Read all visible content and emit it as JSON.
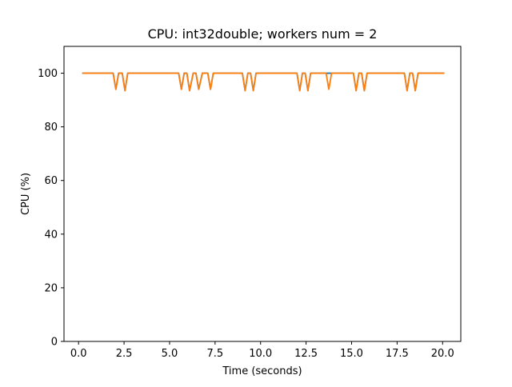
{
  "chart_data": {
    "type": "line",
    "title": "CPU: int32double; workers num = 2",
    "xlabel": "Time (seconds)",
    "ylabel": "CPU (%)",
    "xlim": [
      -0.8,
      21.0
    ],
    "ylim": [
      0,
      110
    ],
    "x_ticks": [
      0.0,
      2.5,
      5.0,
      7.5,
      10.0,
      12.5,
      15.0,
      17.5,
      20.0
    ],
    "x_tick_labels": [
      "0.0",
      "2.5",
      "5.0",
      "7.5",
      "10.0",
      "12.5",
      "15.0",
      "17.5",
      "20.0"
    ],
    "y_ticks": [
      0,
      20,
      40,
      60,
      80,
      100
    ],
    "y_tick_labels": [
      "0",
      "20",
      "40",
      "60",
      "80",
      "100"
    ],
    "grid": false,
    "legend": "none",
    "series": [
      {
        "color": "#1f77b4",
        "x": [
          0.2,
          1.9,
          2.05,
          2.2,
          2.3,
          2.4,
          2.55,
          2.7,
          5.5,
          5.65,
          5.8,
          5.95,
          6.1,
          6.3,
          6.45,
          6.6,
          6.8,
          6.95,
          7.1,
          7.25,
          7.4,
          9.0,
          9.15,
          9.3,
          9.45,
          9.6,
          9.75,
          9.9,
          12.0,
          12.15,
          12.3,
          12.45,
          12.6,
          12.75,
          12.9,
          13.6,
          13.75,
          13.9,
          15.1,
          15.25,
          15.4,
          15.55,
          15.7,
          15.85,
          16.0,
          17.9,
          18.05,
          18.2,
          18.35,
          18.5,
          18.65,
          18.8,
          20.1
        ],
        "y": [
          100,
          100,
          94,
          100,
          100,
          100,
          93.5,
          100,
          100,
          94,
          100,
          100,
          93.5,
          100,
          100,
          94,
          100,
          100,
          100,
          94,
          100,
          100,
          93.5,
          100,
          100,
          93.5,
          100,
          100,
          100,
          93.5,
          100,
          100,
          93.5,
          100,
          100,
          100,
          100,
          100,
          100,
          93.5,
          100,
          100,
          93.5,
          100,
          100,
          100,
          93.5,
          100,
          100,
          93.5,
          100,
          100,
          100
        ]
      },
      {
        "color": "#ff7f0e",
        "x": [
          0.2,
          1.9,
          2.05,
          2.2,
          2.3,
          2.4,
          2.55,
          2.7,
          5.5,
          5.65,
          5.8,
          5.95,
          6.1,
          6.3,
          6.45,
          6.6,
          6.8,
          6.95,
          7.1,
          7.25,
          7.4,
          9.0,
          9.15,
          9.3,
          9.45,
          9.6,
          9.75,
          9.9,
          12.0,
          12.15,
          12.3,
          12.45,
          12.6,
          12.75,
          12.9,
          13.6,
          13.75,
          13.9,
          15.1,
          15.25,
          15.4,
          15.55,
          15.7,
          15.85,
          16.0,
          17.9,
          18.05,
          18.2,
          18.35,
          18.5,
          18.65,
          18.8,
          20.1
        ],
        "y": [
          100,
          100,
          94,
          100,
          100,
          100,
          93.5,
          100,
          100,
          94,
          100,
          100,
          93.5,
          100,
          100,
          94,
          100,
          100,
          100,
          94,
          100,
          100,
          93.5,
          100,
          100,
          93.5,
          100,
          100,
          100,
          93.5,
          100,
          100,
          93.5,
          100,
          100,
          100,
          94,
          100,
          100,
          93.5,
          100,
          100,
          93.5,
          100,
          100,
          100,
          93.5,
          100,
          100,
          93.5,
          100,
          100,
          100
        ]
      }
    ]
  }
}
